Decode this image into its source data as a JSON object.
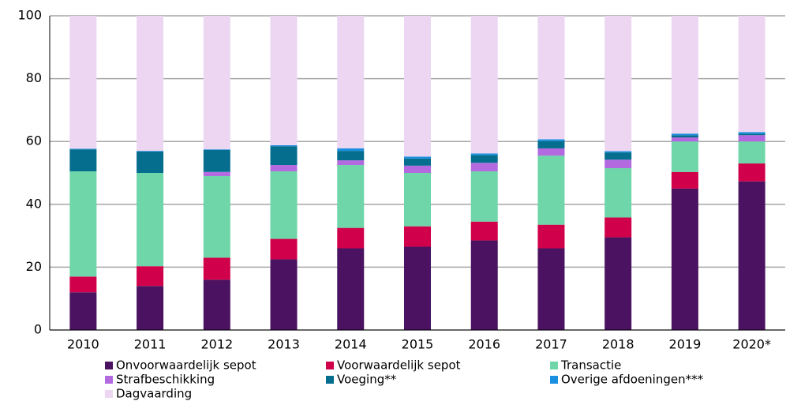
{
  "chart_data": {
    "type": "stacked_bar",
    "categories": [
      "2010",
      "2011",
      "2012",
      "2013",
      "2014",
      "2015",
      "2016",
      "2017",
      "2018",
      "2019",
      "2020*"
    ],
    "series": [
      {
        "name": "Onvoorwaardelijk sepot",
        "color": "#4a1260",
        "values": [
          12,
          14,
          16,
          22.5,
          26,
          26.5,
          28.5,
          26,
          29.5,
          45,
          47.3
        ]
      },
      {
        "name": "Voorwaardelijk sepot",
        "color": "#d0004a",
        "values": [
          5,
          6.3,
          7,
          6.5,
          6.5,
          6.5,
          6,
          7.5,
          6.3,
          5.3,
          5.7
        ]
      },
      {
        "name": "Transactie",
        "color": "#6ed6a8",
        "values": [
          33.5,
          29.7,
          26,
          21.5,
          20,
          17,
          16,
          22,
          15.7,
          9.7,
          7
        ]
      },
      {
        "name": "Strafbeschikking",
        "color": "#b36ae0",
        "values": [
          0,
          0,
          1.3,
          2,
          1.5,
          2.3,
          2.7,
          2.3,
          2.7,
          1.3,
          2
        ]
      },
      {
        "name": "Voeging**",
        "color": "#056e8f",
        "values": [
          7,
          6.8,
          7,
          6,
          3,
          2.3,
          2.5,
          2.3,
          2.3,
          0.7,
          0.5
        ]
      },
      {
        "name": "Overige afdoeningen***",
        "color": "#1a8fe0",
        "values": [
          0.2,
          0.2,
          0.2,
          0.3,
          0.8,
          0.6,
          0.5,
          0.6,
          0.4,
          0.5,
          0.5
        ]
      },
      {
        "name": "Dagvaarding",
        "color": "#ecd6f2",
        "values": [
          42.3,
          43,
          42.5,
          41.2,
          42.2,
          44.8,
          43.8,
          39.3,
          43.1,
          37.5,
          37
        ]
      }
    ],
    "ylim": [
      0,
      100
    ],
    "yticks": [
      0,
      20,
      40,
      60,
      80,
      100
    ],
    "grid": true
  }
}
